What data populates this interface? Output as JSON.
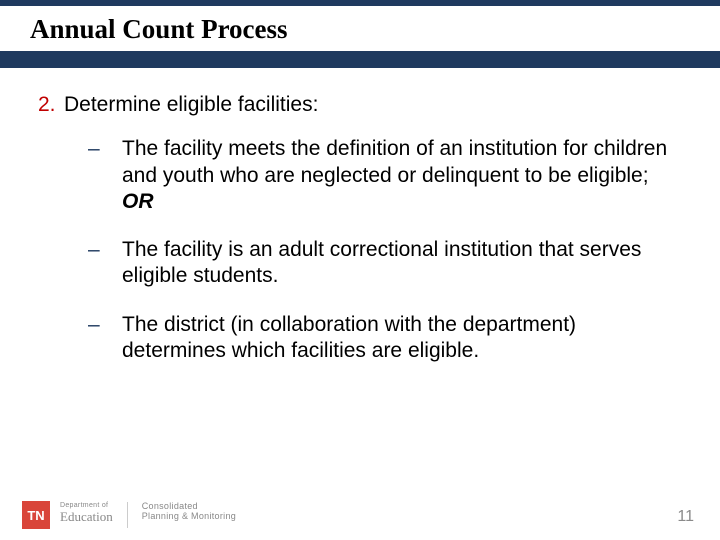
{
  "colors": {
    "header_band": "#1f3a5f",
    "title_underline": "#1f3a5f",
    "list_number": "#c00000",
    "sub_dash": "#1f3a5f",
    "tn_badge_bg": "#d9453a",
    "page_num": "#8a8a8a",
    "footer_text": "#888888"
  },
  "title": "Annual Count Process",
  "list": {
    "number": "2.",
    "text": "Determine eligible facilities:",
    "sub_items": [
      {
        "dash": "–",
        "text_before_or": "The facility meets the definition of an institution for children and youth who are neglected or delinquent to be eligible; ",
        "or": "OR"
      },
      {
        "dash": "–",
        "text": "The facility is an adult correctional institution that serves eligible students."
      },
      {
        "dash": "–",
        "text": "The district (in collaboration with the department) determines which facilities are eligible."
      }
    ]
  },
  "footer": {
    "tn": "TN",
    "dept_small": "Department of",
    "dept_big": "Education",
    "consolidated_a": "Consolidated",
    "consolidated_b": "Planning & Monitoring",
    "page_number": "11"
  }
}
